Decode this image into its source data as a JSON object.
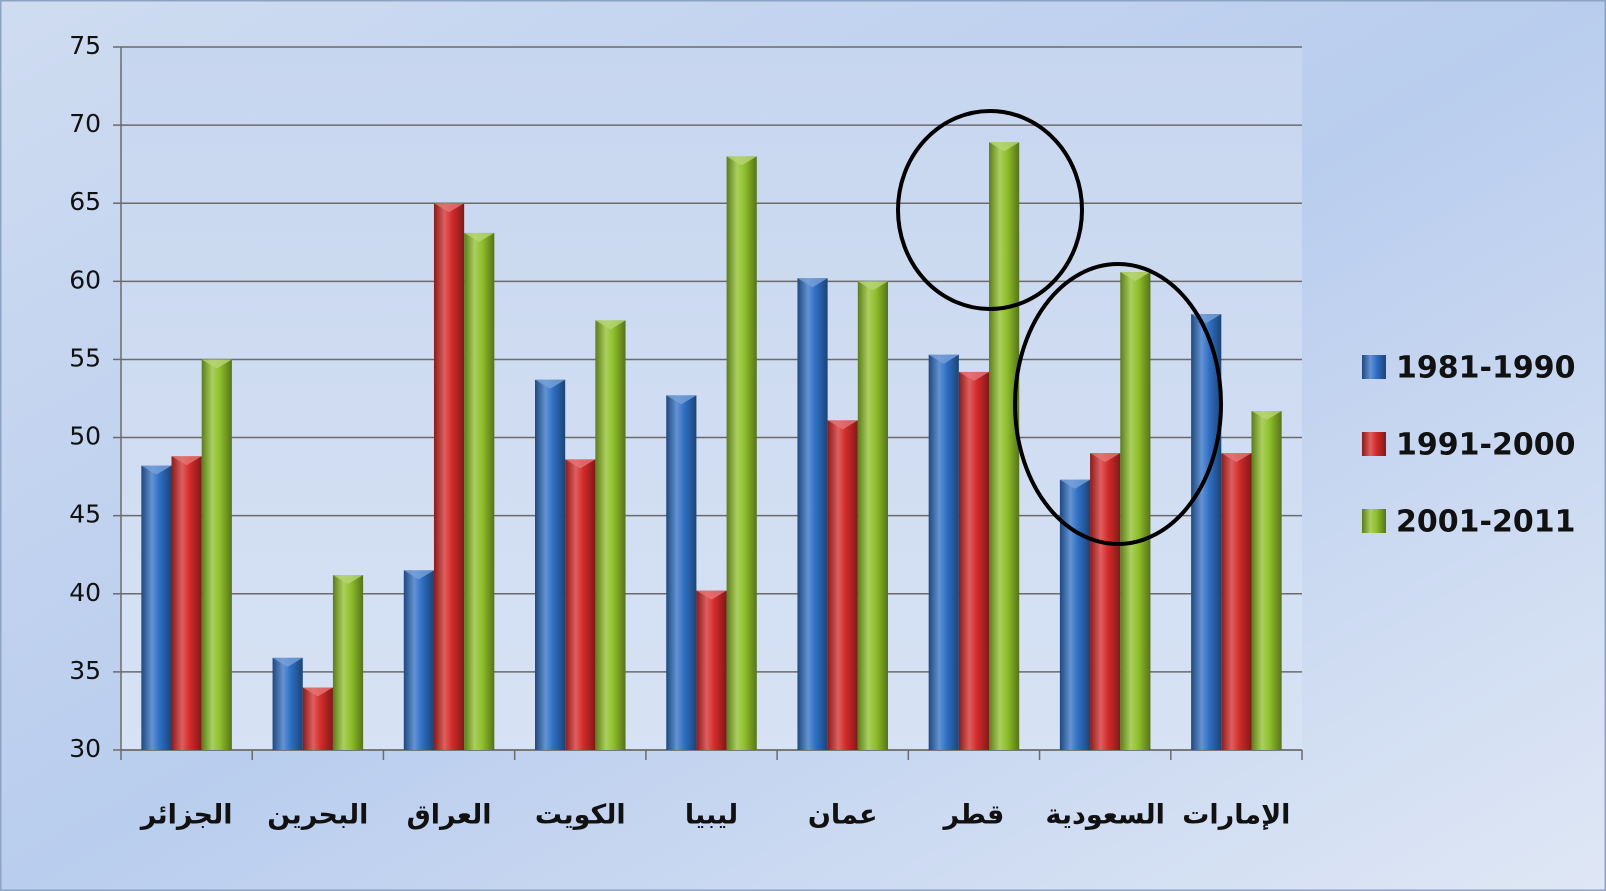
{
  "chart_data": {
    "type": "bar",
    "categories": [
      "الجزائر",
      "البحرين",
      "العراق",
      "الكويت",
      "ليبيا",
      "عمان",
      "قطر",
      "السعودية",
      "الإمارات"
    ],
    "series": [
      {
        "name": "1981-1990",
        "color": "#2f6fc4",
        "values": [
          48.2,
          35.9,
          41.5,
          53.7,
          52.7,
          60.2,
          55.3,
          47.3,
          57.9
        ]
      },
      {
        "name": "1991-2000",
        "color": "#d42a2a",
        "values": [
          48.8,
          34,
          65,
          48.6,
          40.2,
          51.1,
          54.2,
          49,
          49
        ]
      },
      {
        "name": "2001-2011",
        "color": "#8fbf2a",
        "values": [
          55,
          41.2,
          63.1,
          57.5,
          68,
          60,
          68.9,
          60.6,
          51.7
        ]
      }
    ],
    "ylim": [
      30,
      75
    ],
    "yticks": [
      30,
      35,
      40,
      45,
      50,
      55,
      60,
      65,
      70,
      75
    ],
    "grid": true
  }
}
